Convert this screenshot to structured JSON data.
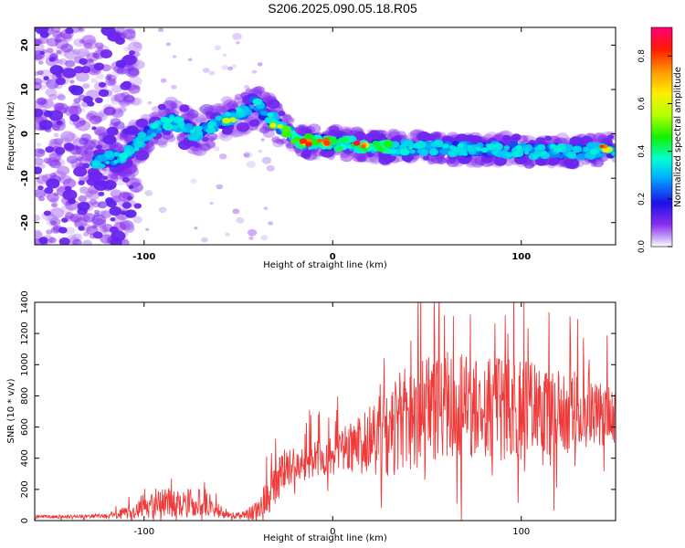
{
  "title": "S206.2025.090.05.18.R05",
  "chart_data": [
    {
      "type": "heatmap",
      "xlabel": "Height of straight line (km)",
      "ylabel": "Frequency (Hz)",
      "xlim": [
        -158,
        150
      ],
      "ylim": [
        -25,
        24
      ],
      "xticks": [
        -100,
        0,
        100
      ],
      "yticks": [
        -20,
        -10,
        0,
        10,
        20
      ],
      "colorbar": {
        "label": "Normalized spectral amplitude",
        "range": [
          0.0,
          0.92
        ],
        "ticks": [
          0.0,
          0.2,
          0.4,
          0.6,
          0.8
        ]
      },
      "ridge": [
        {
          "x": -128,
          "f": -6.5
        },
        {
          "x": -115,
          "f": -5.5
        },
        {
          "x": -105,
          "f": -3
        },
        {
          "x": -95,
          "f": 1
        },
        {
          "x": -85,
          "f": 3
        },
        {
          "x": -72,
          "f": 0
        },
        {
          "x": -60,
          "f": 2.5
        },
        {
          "x": -45,
          "f": 5.5
        },
        {
          "x": -40,
          "f": 7
        },
        {
          "x": -35,
          "f": 4
        },
        {
          "x": -25,
          "f": 1
        },
        {
          "x": -15,
          "f": -2
        },
        {
          "x": 0,
          "f": -2
        },
        {
          "x": 15,
          "f": -2.5
        },
        {
          "x": 30,
          "f": -3
        },
        {
          "x": 50,
          "f": -3.2
        },
        {
          "x": 70,
          "f": -3.5
        },
        {
          "x": 90,
          "f": -3.5
        },
        {
          "x": 110,
          "f": -4
        },
        {
          "x": 130,
          "f": -4
        },
        {
          "x": 150,
          "f": -3.5
        }
      ],
      "peaks": [
        {
          "x": -15,
          "f": -2,
          "a": 0.9
        },
        {
          "x": -5,
          "f": -1.8,
          "a": 0.85
        },
        {
          "x": 15,
          "f": -2.5,
          "a": 0.88
        },
        {
          "x": 145,
          "f": -3.2,
          "a": 0.82
        },
        {
          "x": -55,
          "f": 3,
          "a": 0.6
        },
        {
          "x": -30,
          "f": 2,
          "a": 0.65
        }
      ]
    },
    {
      "type": "line",
      "xlabel": "Height of straight line (km)",
      "ylabel": "SNR (10 * v/v)",
      "xlim": [
        -158,
        150
      ],
      "ylim": [
        0,
        1400
      ],
      "xticks": [
        -100,
        0,
        100
      ],
      "yticks": [
        0,
        200,
        400,
        600,
        800,
        1000,
        1200,
        1400
      ],
      "color": "#ef3a3a",
      "series": [
        {
          "x": [
            -158,
            -140,
            -120,
            -110,
            -100,
            -90,
            -80,
            -70,
            -65,
            -60,
            -50,
            -40,
            -35,
            -30,
            -25,
            -20,
            -10,
            0,
            10,
            20,
            30,
            40,
            50,
            60,
            70,
            80,
            90,
            100,
            110,
            120,
            130,
            140,
            150
          ],
          "y": [
            25,
            25,
            30,
            50,
            100,
            120,
            110,
            120,
            100,
            40,
            30,
            60,
            150,
            250,
            350,
            330,
            400,
            420,
            480,
            520,
            600,
            650,
            700,
            720,
            750,
            700,
            720,
            700,
            720,
            680,
            700,
            690,
            700
          ],
          "amplitude": [
            10,
            10,
            15,
            40,
            80,
            90,
            90,
            90,
            70,
            25,
            20,
            60,
            120,
            150,
            120,
            100,
            120,
            130,
            180,
            220,
            320,
            340,
            350,
            330,
            330,
            330,
            340,
            320,
            300,
            280,
            260,
            220,
            200
          ]
        }
      ]
    }
  ]
}
